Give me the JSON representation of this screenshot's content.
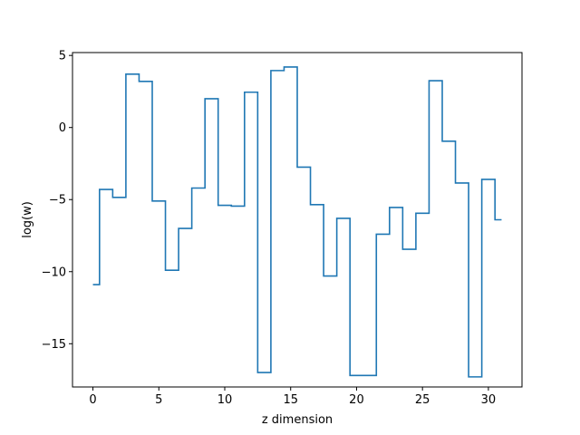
{
  "chart_data": {
    "type": "line",
    "drawstyle": "steps-mid",
    "title": "",
    "xlabel": "z dimension",
    "ylabel": "log(w)",
    "xlim": [
      -1.55,
      32.55
    ],
    "ylim": [
      -18.0,
      5.2
    ],
    "xticks": [
      0,
      5,
      10,
      15,
      20,
      25,
      30
    ],
    "xtick_labels": [
      "0",
      "5",
      "10",
      "15",
      "20",
      "25",
      "30"
    ],
    "yticks": [
      -15,
      -10,
      -5,
      0,
      5
    ],
    "ytick_labels": [
      "−15",
      "−10",
      "−5",
      "0",
      "5"
    ],
    "grid": false,
    "legend": "none",
    "series": [
      {
        "color": "#1f77b4",
        "x": [
          0,
          1,
          2,
          3,
          4,
          5,
          6,
          7,
          8,
          9,
          10,
          11,
          12,
          13,
          14,
          15,
          16,
          17,
          18,
          19,
          20,
          21,
          22,
          23,
          24,
          25,
          26,
          27,
          28,
          29,
          30,
          31
        ],
        "y": [
          -10.9,
          -4.3,
          -4.85,
          3.7,
          3.2,
          -5.1,
          -9.9,
          -7.0,
          -4.2,
          2.0,
          -5.4,
          -5.45,
          2.45,
          -17.0,
          3.95,
          4.2,
          -2.75,
          -5.35,
          -10.3,
          -6.3,
          -17.2,
          -17.2,
          -7.4,
          -5.55,
          -8.45,
          -5.95,
          3.25,
          -0.95,
          -3.85,
          -17.3,
          -3.6,
          -6.4
        ]
      }
    ]
  }
}
